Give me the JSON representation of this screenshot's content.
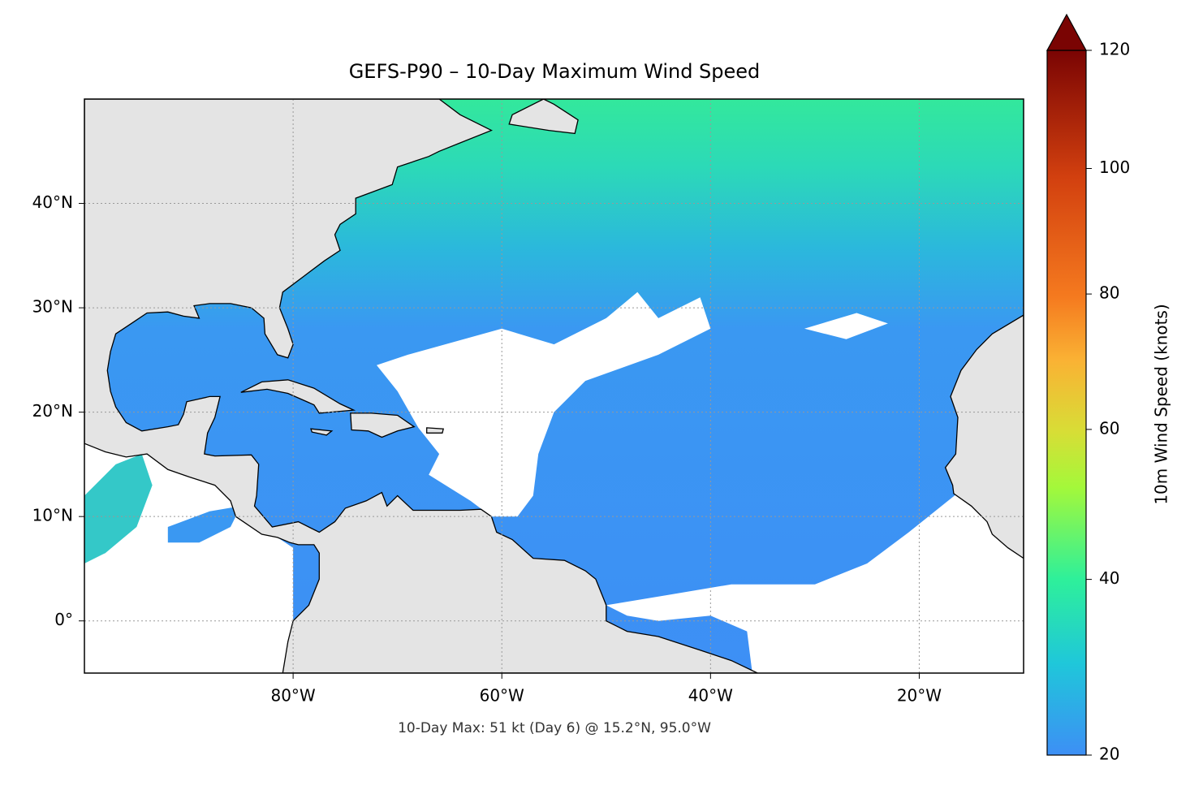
{
  "map": {
    "title": "GEFS-P90 – 10-Day Maximum Wind Speed",
    "annotation": "10-Day Max: 51 kt (Day 6) @ 15.2°N, 95.0°W",
    "lonlim": [
      -100,
      -10
    ],
    "latlim": [
      -5,
      50
    ],
    "lon_ticks": [
      {
        "value": -80,
        "label": "80°W"
      },
      {
        "value": -60,
        "label": "60°W"
      },
      {
        "value": -40,
        "label": "40°W"
      },
      {
        "value": -20,
        "label": "20°W"
      }
    ],
    "lat_ticks": [
      {
        "value": 0,
        "label": "0°"
      },
      {
        "value": 10,
        "label": "10°N"
      },
      {
        "value": 20,
        "label": "20°N"
      },
      {
        "value": 30,
        "label": "30°N"
      },
      {
        "value": 40,
        "label": "40°N"
      }
    ],
    "grid": true,
    "colorbar": {
      "label": "10m Wind Speed (knots)",
      "lim": [
        20,
        120
      ],
      "ticks": [
        20,
        40,
        60,
        80,
        100,
        120
      ],
      "norm": "power",
      "gamma": 0.7,
      "extend": "max"
    }
  }
}
